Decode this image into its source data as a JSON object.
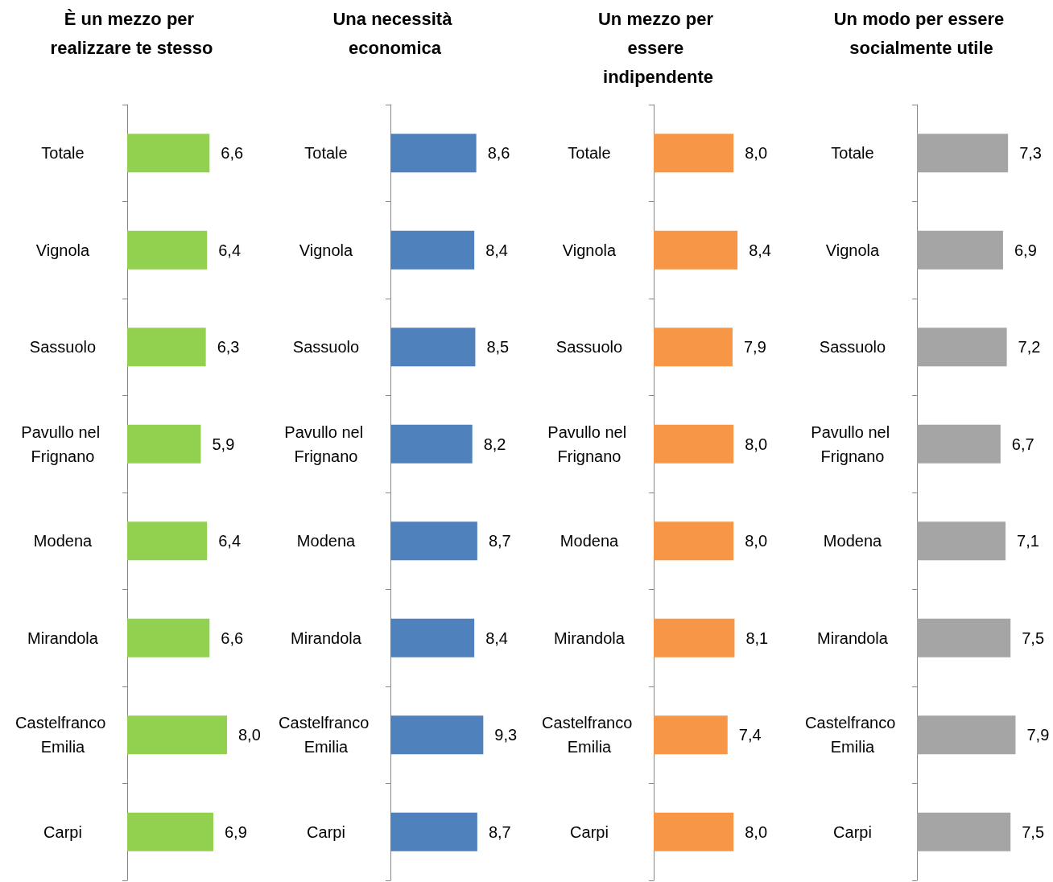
{
  "chart_data": [
    {
      "type": "bar",
      "orientation": "horizontal",
      "title": "È un mezzo per realizzare te stesso",
      "categories": [
        "Totale",
        "Vignola",
        "Sassuolo",
        "Pavullo nel Frignano",
        "Modena",
        "Mirandola",
        "Castelfranco Emilia",
        "Carpi"
      ],
      "values": [
        6.6,
        6.4,
        6.3,
        5.9,
        6.4,
        6.6,
        8.0,
        6.9
      ],
      "value_labels": [
        "6,6",
        "6,4",
        "6,3",
        "5,9",
        "6,4",
        "6,6",
        "8,0",
        "6,9"
      ],
      "color": "#92d050"
    },
    {
      "type": "bar",
      "orientation": "horizontal",
      "title": "Una necessità economica",
      "categories": [
        "Totale",
        "Vignola",
        "Sassuolo",
        "Pavullo nel Frignano",
        "Modena",
        "Mirandola",
        "Castelfranco Emilia",
        "Carpi"
      ],
      "values": [
        8.6,
        8.4,
        8.5,
        8.2,
        8.7,
        8.4,
        9.3,
        8.7
      ],
      "value_labels": [
        "8,6",
        "8,4",
        "8,5",
        "8,2",
        "8,7",
        "8,4",
        "9,3",
        "8,7"
      ],
      "color": "#4f81bd"
    },
    {
      "type": "bar",
      "orientation": "horizontal",
      "title": "Un mezzo per essere indipendente",
      "categories": [
        "Totale",
        "Vignola",
        "Sassuolo",
        "Pavullo nel Frignano",
        "Modena",
        "Mirandola",
        "Castelfranco Emilia",
        "Carpi"
      ],
      "values": [
        8.0,
        8.4,
        7.9,
        8.0,
        8.0,
        8.1,
        7.4,
        8.0
      ],
      "value_labels": [
        "8,0",
        "8,4",
        "7,9",
        "8,0",
        "8,0",
        "8,1",
        "7,4",
        "8,0"
      ],
      "color": "#f79646"
    },
    {
      "type": "bar",
      "orientation": "horizontal",
      "title": "Un modo per essere socialmente utile",
      "categories": [
        "Totale",
        "Vignola",
        "Sassuolo",
        "Pavullo nel Frignano",
        "Modena",
        "Mirandola",
        "Castelfranco Emilia",
        "Carpi"
      ],
      "values": [
        7.3,
        6.9,
        7.2,
        6.7,
        7.1,
        7.5,
        7.9,
        7.5
      ],
      "value_labels": [
        "7,3",
        "6,9",
        "7,2",
        "6,7",
        "7,1",
        "7,5",
        "7,9",
        "7,5"
      ],
      "color": "#a5a5a5"
    }
  ]
}
